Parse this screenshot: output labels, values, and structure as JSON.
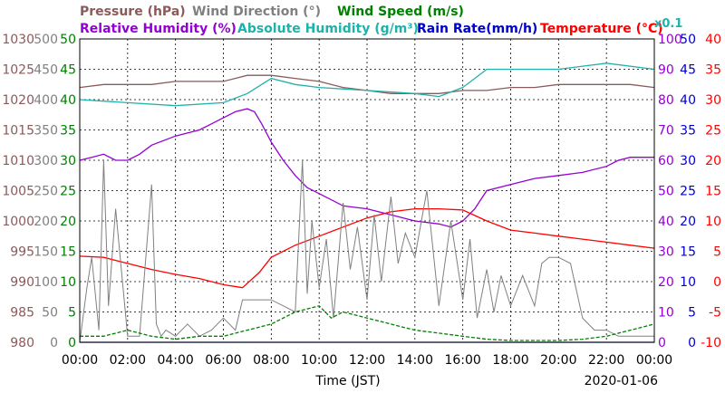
{
  "chart_data": {
    "type": "line",
    "date": "2020-01-06",
    "xlabel": "Time (JST)",
    "x_ticks": [
      "00:00",
      "02:00",
      "04:00",
      "06:00",
      "08:00",
      "10:00",
      "12:00",
      "14:00",
      "16:00",
      "18:00",
      "20:00",
      "22:00",
      "00:00"
    ],
    "grid": true,
    "legend": [
      {
        "label": "Pressure (hPa)",
        "color": "#8b5a5a"
      },
      {
        "label": "Wind Direction (°)",
        "color": "#808080"
      },
      {
        "label": "Wind Speed (m/s)",
        "color": "#008000"
      },
      {
        "label": "Relative Humidity (%)",
        "color": "#9400d3"
      },
      {
        "label": "Absolute Humidity (g/m³)",
        "color": "#20b2aa"
      },
      {
        "label": "Rain Rate(mm/h)",
        "color": "#0000cd"
      },
      {
        "label": "Temperature (°C)",
        "color": "#ff0000"
      }
    ],
    "rain_multiplier_label": "x0.1",
    "axes": {
      "pressure": {
        "ticks": [
          "1030",
          "1025",
          "1020",
          "1015",
          "1010",
          "1005",
          "1000",
          "995",
          "990",
          "985",
          "980"
        ],
        "ylim": [
          980,
          1030
        ],
        "color": "#8b5a5a"
      },
      "wind_direction": {
        "ticks": [
          "500",
          "450",
          "400",
          "350",
          "300",
          "250",
          "200",
          "150",
          "100",
          "50",
          "0"
        ],
        "ylim": [
          0,
          500
        ],
        "color": "#808080"
      },
      "wind_speed": {
        "ticks": [
          "50",
          "45",
          "40",
          "35",
          "30",
          "25",
          "20",
          "15",
          "10",
          "5",
          "0"
        ],
        "ylim": [
          0,
          50
        ],
        "color": "#008000"
      },
      "humidity": {
        "ticks": [
          "100",
          "90",
          "80",
          "70",
          "60",
          "50",
          "40",
          "30",
          "20",
          "10",
          "0"
        ],
        "ylim": [
          0,
          100
        ],
        "color": "#9400d3"
      },
      "rain": {
        "ticks": [
          "50",
          "45",
          "40",
          "35",
          "30",
          "25",
          "20",
          "15",
          "10",
          "5",
          "0"
        ],
        "ylim": [
          0,
          50
        ],
        "color": "#0000cd"
      },
      "temperature": {
        "ticks": [
          "40",
          "35",
          "30",
          "25",
          "20",
          "15",
          "10",
          "5",
          "0",
          "-5",
          "-10"
        ],
        "ylim": [
          -10,
          40
        ],
        "color": "#ff0000"
      }
    },
    "series": [
      {
        "name": "Pressure (hPa)",
        "color": "#8b5a5a",
        "x": [
          0,
          1,
          2,
          3,
          4,
          5,
          6,
          7,
          7.5,
          8,
          9,
          10,
          11,
          12,
          13,
          14,
          15,
          16,
          17,
          18,
          19,
          20,
          21,
          22,
          23,
          24
        ],
        "y": [
          1022,
          1022.5,
          1022.5,
          1022.5,
          1023,
          1023,
          1023,
          1024,
          1024,
          1024,
          1023.5,
          1023,
          1022,
          1021.5,
          1021,
          1021,
          1021,
          1021.5,
          1021.5,
          1022,
          1022,
          1022.5,
          1022.5,
          1022.5,
          1022.5,
          1022
        ]
      },
      {
        "name": "Relative Humidity (%)",
        "color": "#9400d3",
        "x": [
          0,
          0.5,
          1,
          1.5,
          2,
          2.5,
          3,
          4,
          5,
          5.5,
          6,
          6.5,
          7,
          7.3,
          7.6,
          8,
          8.5,
          9,
          9.5,
          10,
          11,
          12,
          13,
          14,
          15,
          15.5,
          16,
          16.5,
          17,
          18,
          19,
          20,
          21,
          22,
          22.5,
          23,
          24
        ],
        "y": [
          60,
          61,
          62,
          60,
          60,
          62,
          65,
          68,
          70,
          72,
          74,
          76,
          77,
          76,
          72,
          66,
          60,
          55,
          51,
          49,
          45,
          44,
          42,
          40,
          39,
          38,
          40,
          44,
          50,
          52,
          54,
          55,
          56,
          58,
          60,
          61,
          61
        ]
      },
      {
        "name": "Absolute Humidity (g/m³)",
        "color": "#20b2aa",
        "x": [
          0,
          2,
          4,
          6,
          7,
          8,
          9,
          10,
          12,
          14,
          15,
          16,
          17,
          18,
          20,
          22,
          24
        ],
        "y": [
          40,
          39.5,
          39,
          39.5,
          41,
          43.5,
          42.5,
          42,
          41.5,
          41,
          40.5,
          42,
          45,
          45,
          45,
          46,
          45
        ]
      },
      {
        "name": "Temperature (°C)",
        "color": "#ff0000",
        "x": [
          0,
          1,
          2,
          3,
          4,
          5,
          6,
          6.8,
          7.5,
          8,
          9,
          10,
          11,
          12,
          13,
          14,
          15,
          16,
          17,
          18,
          19,
          20,
          21,
          22,
          23,
          24
        ],
        "y": [
          4.2,
          4,
          3,
          2,
          1.2,
          0.5,
          -0.5,
          -1,
          1.5,
          4,
          6,
          7.5,
          9,
          10.5,
          11.5,
          12,
          12,
          11.8,
          10,
          8.5,
          8,
          7.5,
          7,
          6.5,
          6,
          5.5
        ]
      },
      {
        "name": "Wind Direction (°)",
        "color": "#808080",
        "x": [
          0,
          0.3,
          0.5,
          0.8,
          1,
          1.2,
          1.5,
          2,
          2.5,
          3,
          3.2,
          3.4,
          3.6,
          4,
          4.5,
          5,
          5.5,
          6,
          6.5,
          6.8,
          7,
          8,
          9,
          9.3,
          9.5,
          9.7,
          10,
          10.3,
          10.6,
          11,
          11.3,
          11.6,
          12,
          12.3,
          12.6,
          13,
          13.3,
          13.6,
          14,
          14.5,
          15,
          15.5,
          16,
          16.3,
          16.6,
          17,
          17.3,
          17.6,
          18,
          18.5,
          19,
          19.3,
          19.6,
          20,
          20.5,
          21,
          21.5,
          22,
          22.5,
          23,
          23.5,
          24
        ],
        "y": [
          0,
          90,
          140,
          20,
          300,
          60,
          220,
          10,
          10,
          260,
          30,
          10,
          20,
          10,
          30,
          10,
          20,
          40,
          20,
          70,
          70,
          70,
          50,
          300,
          80,
          200,
          90,
          170,
          40,
          230,
          120,
          190,
          70,
          210,
          100,
          240,
          130,
          180,
          140,
          250,
          60,
          200,
          70,
          170,
          40,
          120,
          50,
          110,
          60,
          110,
          60,
          130,
          140,
          140,
          130,
          40,
          20,
          20,
          10,
          10,
          10,
          10
        ]
      },
      {
        "name": "Wind Speed (m/s)",
        "color": "#008000",
        "x": [
          0,
          1,
          2,
          3,
          4,
          5,
          6,
          7,
          8,
          9,
          10,
          10.5,
          11,
          12,
          13,
          14,
          15,
          16,
          17,
          18,
          19,
          20,
          21,
          22,
          23,
          24
        ],
        "y": [
          1,
          1,
          2,
          1,
          0.5,
          1,
          1,
          2,
          3,
          5,
          6,
          4,
          5,
          4,
          3,
          2,
          1.5,
          1,
          0.5,
          0.3,
          0.3,
          0.3,
          0.5,
          1,
          2,
          3
        ]
      },
      {
        "name": "Rain Rate(mm/h)",
        "color": "#0000cd",
        "x": [
          0,
          24
        ],
        "y": [
          0,
          0
        ]
      }
    ]
  }
}
